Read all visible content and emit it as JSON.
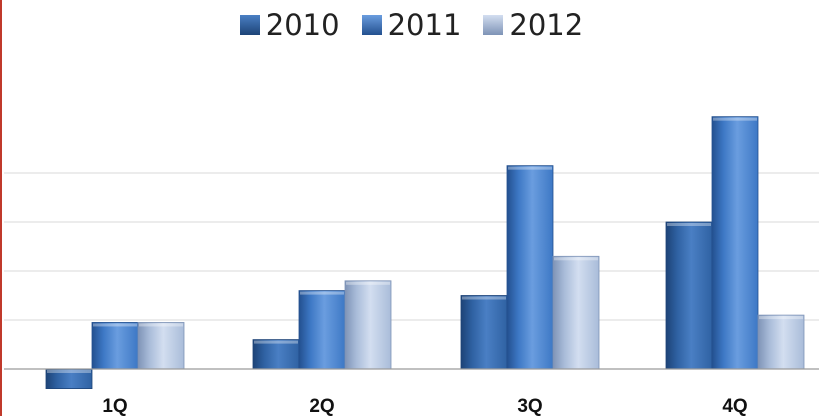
{
  "chart_data": {
    "type": "bar",
    "title": "",
    "xlabel": "",
    "ylabel": "",
    "categories": [
      "1Q",
      "2Q",
      "3Q",
      "4Q"
    ],
    "series": [
      {
        "name": "2010",
        "values": [
          -0.4,
          0.6,
          1.5,
          3.0
        ]
      },
      {
        "name": "2011",
        "values": [
          0.95,
          1.6,
          4.15,
          5.15
        ]
      },
      {
        "name": "2012",
        "values": [
          0.95,
          1.8,
          2.3,
          1.1
        ]
      }
    ],
    "ylim": [
      -0.4,
      6.0
    ],
    "grid": true,
    "legend_position": "top",
    "colors": {
      "2010": {
        "main": "#2f62a3",
        "light": "#4a7fc4",
        "dark": "#1d4377"
      },
      "2011": {
        "main": "#3d78c5",
        "light": "#6a9ddf",
        "dark": "#23508f"
      },
      "2012": {
        "main": "#a9bcd9",
        "light": "#d3def0",
        "dark": "#7e93b6"
      }
    },
    "gridline_color": "#d9d9d9",
    "axis_color": "#9a9a9a"
  }
}
